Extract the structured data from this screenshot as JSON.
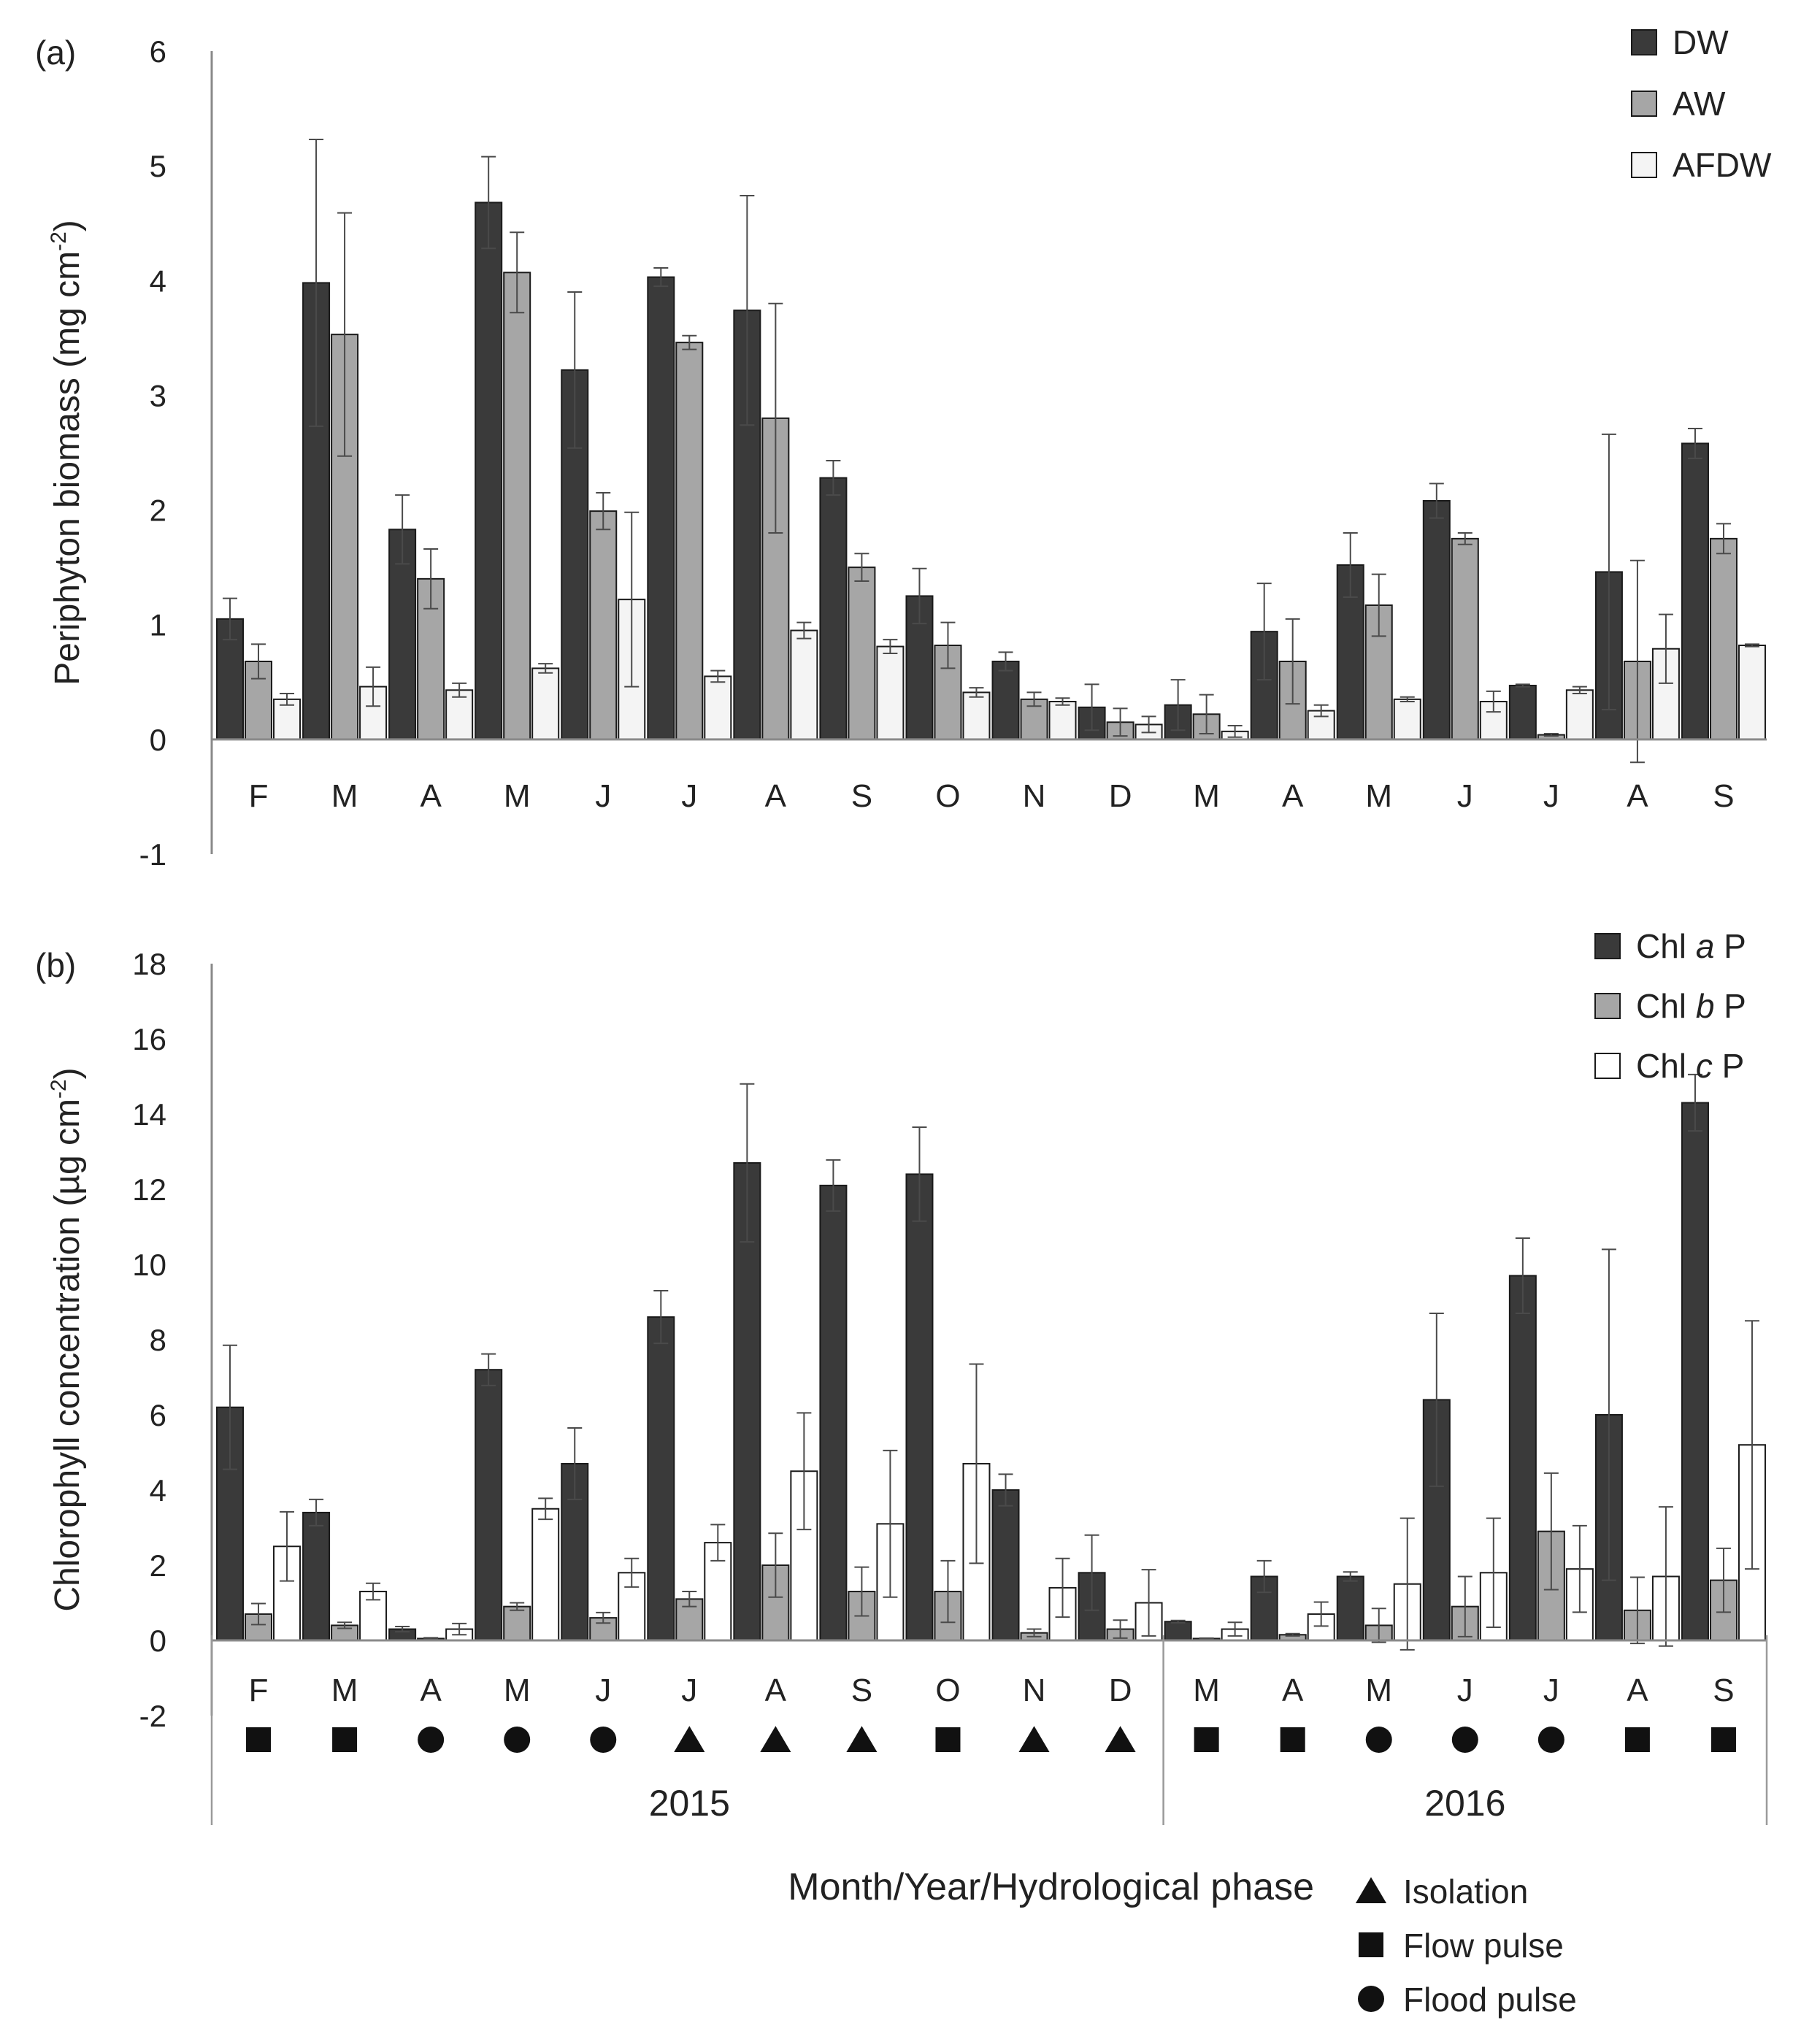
{
  "chart_data": [
    {
      "type": "bar",
      "panel_label": "(a)",
      "ylabel": "Periphyton biomass (mg cm-2)",
      "ylabel_main": "Periphyton biomass (mg cm",
      "ylabel_sup": "-2",
      "ylabel_end": ")",
      "ylim": [
        -1,
        6
      ],
      "yticks": [
        -1,
        0,
        1,
        2,
        3,
        4,
        5,
        6
      ],
      "categories": [
        "F",
        "M",
        "A",
        "M",
        "J",
        "J",
        "A",
        "S",
        "O",
        "N",
        "D",
        "M",
        "A",
        "M",
        "J",
        "J",
        "A",
        "S"
      ],
      "legend_position": "top-right",
      "series": [
        {
          "name": "DW",
          "color": "#3a3a3a",
          "values": [
            1.05,
            3.98,
            1.83,
            4.68,
            3.22,
            4.03,
            3.74,
            2.28,
            1.25,
            0.68,
            0.28,
            0.3,
            0.94,
            1.52,
            2.08,
            0.47,
            1.46,
            2.58
          ],
          "errors": [
            0.18,
            1.25,
            0.3,
            0.4,
            0.68,
            0.08,
            1.0,
            0.15,
            0.24,
            0.08,
            0.2,
            0.22,
            0.42,
            0.28,
            0.15,
            0.01,
            1.2,
            0.13
          ]
        },
        {
          "name": "AW",
          "color": "#a6a6a6",
          "values": [
            0.68,
            3.53,
            1.4,
            4.07,
            1.99,
            3.46,
            2.8,
            1.5,
            0.82,
            0.35,
            0.15,
            0.22,
            0.68,
            1.17,
            1.75,
            0.04,
            0.68,
            1.75
          ],
          "errors": [
            0.15,
            1.06,
            0.26,
            0.35,
            0.16,
            0.06,
            1.0,
            0.12,
            0.2,
            0.06,
            0.12,
            0.17,
            0.37,
            0.27,
            0.05,
            0.01,
            0.88,
            0.13
          ]
        },
        {
          "name": "AFDW",
          "color": "#f4f4f4",
          "values": [
            0.35,
            0.46,
            0.43,
            0.62,
            1.22,
            0.55,
            0.95,
            0.81,
            0.41,
            0.33,
            0.13,
            0.07,
            0.25,
            0.35,
            0.33,
            0.43,
            0.79,
            0.82
          ],
          "errors": [
            0.05,
            0.17,
            0.06,
            0.04,
            0.76,
            0.05,
            0.07,
            0.06,
            0.04,
            0.03,
            0.07,
            0.05,
            0.05,
            0.02,
            0.09,
            0.03,
            0.3,
            0.01
          ]
        }
      ]
    },
    {
      "type": "bar",
      "panel_label": "(b)",
      "ylabel": "Chlorophyll concentration (µg cm-2)",
      "ylabel_main": "Chlorophyll concentration (µg cm",
      "ylabel_sup": "-2",
      "ylabel_end": ")",
      "ylim": [
        -2,
        18
      ],
      "yticks": [
        -2,
        0,
        2,
        4,
        6,
        8,
        10,
        12,
        14,
        16,
        18
      ],
      "categories": [
        "F",
        "M",
        "A",
        "M",
        "J",
        "J",
        "A",
        "S",
        "O",
        "N",
        "D",
        "M",
        "A",
        "M",
        "J",
        "J",
        "A",
        "S"
      ],
      "legend_position": "top-right",
      "series": [
        {
          "name": "Chl a P",
          "prefix": "Chl ",
          "italic": "a",
          "suffix": " P",
          "color": "#3a3a3a",
          "values": [
            6.2,
            3.4,
            0.3,
            7.2,
            4.7,
            8.6,
            12.7,
            12.1,
            12.4,
            4.0,
            1.8,
            0.5,
            1.7,
            1.7,
            6.4,
            9.7,
            6.0,
            14.3
          ],
          "errors": [
            1.65,
            0.35,
            0.07,
            0.42,
            0.95,
            0.7,
            2.1,
            0.68,
            1.25,
            0.42,
            1.0,
            0.03,
            0.42,
            0.12,
            2.3,
            1.0,
            4.4,
            0.75
          ]
        },
        {
          "name": "Chl b P",
          "prefix": "Chl ",
          "italic": "b",
          "suffix": " P",
          "color": "#a6a6a6",
          "values": [
            0.7,
            0.4,
            0.05,
            0.9,
            0.6,
            1.1,
            2.0,
            1.3,
            1.3,
            0.2,
            0.3,
            0.05,
            0.15,
            0.4,
            0.9,
            2.9,
            0.8,
            1.6
          ],
          "errors": [
            0.28,
            0.08,
            0.02,
            0.1,
            0.14,
            0.2,
            0.85,
            0.65,
            0.82,
            0.1,
            0.24,
            0.01,
            0.03,
            0.45,
            0.8,
            1.55,
            0.88,
            0.85
          ]
        },
        {
          "name": "Chl c P",
          "prefix": "Chl ",
          "italic": "c",
          "suffix": " P",
          "color": "#ffffff",
          "values": [
            2.5,
            1.3,
            0.3,
            3.5,
            1.8,
            2.6,
            4.5,
            3.1,
            4.7,
            1.4,
            1.0,
            0.3,
            0.7,
            1.5,
            1.8,
            1.9,
            1.7,
            5.2
          ],
          "errors": [
            0.92,
            0.22,
            0.15,
            0.28,
            0.38,
            0.48,
            1.55,
            1.95,
            2.65,
            0.78,
            0.88,
            0.18,
            0.32,
            1.75,
            1.45,
            1.15,
            1.85,
            3.3
          ]
        }
      ],
      "phases": [
        "flow",
        "flow",
        "flood",
        "flood",
        "flood",
        "isolation",
        "isolation",
        "isolation",
        "flow",
        "isolation",
        "isolation",
        "flow",
        "flow",
        "flood",
        "flood",
        "flood",
        "flow",
        "flow"
      ],
      "years": [
        {
          "label": "2015",
          "from": 0,
          "to": 10
        },
        {
          "label": "2016",
          "from": 11,
          "to": 17
        }
      ],
      "xlabel": "Month/Year/Hydrological phase",
      "phase_legend": [
        {
          "key": "isolation",
          "label": "Isolation"
        },
        {
          "key": "flow",
          "label": "Flow pulse"
        },
        {
          "key": "flood",
          "label": "Flood pulse"
        }
      ]
    }
  ]
}
